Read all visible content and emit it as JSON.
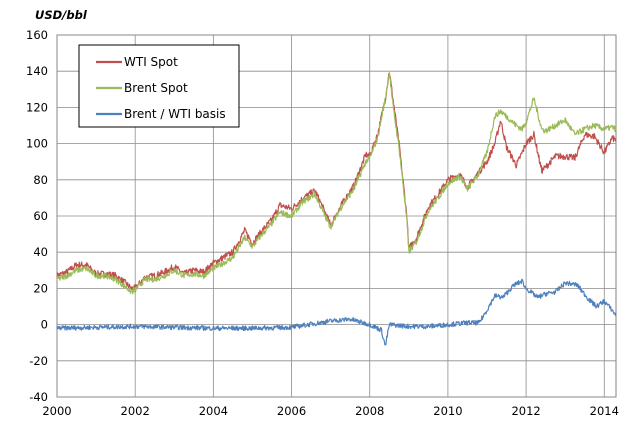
{
  "chart_data": {
    "type": "line",
    "title": "",
    "xlabel": "",
    "ylabel": "USD/bbl",
    "xlim": [
      2000,
      2014.3
    ],
    "ylim": [
      -40,
      160
    ],
    "x_ticks": [
      2000,
      2002,
      2004,
      2006,
      2008,
      2010,
      2012,
      2014
    ],
    "y_ticks": [
      -40,
      -20,
      0,
      20,
      40,
      60,
      80,
      100,
      120,
      140,
      160
    ],
    "grid": true,
    "legend_position": "top-left",
    "series": [
      {
        "name": "WTI Spot",
        "color": "#c0504d",
        "x": [
          2000,
          2000.25,
          2000.5,
          2000.75,
          2001,
          2001.25,
          2001.5,
          2001.75,
          2001.9,
          2002,
          2002.25,
          2002.5,
          2002.75,
          2003,
          2003.25,
          2003.5,
          2003.75,
          2004,
          2004.25,
          2004.5,
          2004.8,
          2005,
          2005.25,
          2005.5,
          2005.7,
          2006,
          2006.3,
          2006.6,
          2006.9,
          2007,
          2007.3,
          2007.6,
          2007.9,
          2008,
          2008.2,
          2008.4,
          2008.5,
          2008.6,
          2008.75,
          2008.95,
          2009,
          2009.2,
          2009.5,
          2009.75,
          2010,
          2010.3,
          2010.5,
          2010.75,
          2011,
          2011.2,
          2011.35,
          2011.5,
          2011.75,
          2011.9,
          2012,
          2012.2,
          2012.4,
          2012.5,
          2012.75,
          2013,
          2013.25,
          2013.5,
          2013.75,
          2014,
          2014.2,
          2014.3
        ],
        "values": [
          27,
          29,
          33,
          33,
          28,
          28,
          27,
          23,
          20,
          20,
          26,
          27,
          29,
          32,
          28,
          30,
          29,
          34,
          37,
          40,
          52,
          45,
          52,
          58,
          66,
          64,
          70,
          74,
          60,
          55,
          67,
          77,
          94,
          93,
          105,
          125,
          140,
          124,
          100,
          60,
          42,
          48,
          65,
          72,
          80,
          83,
          76,
          83,
          90,
          100,
          113,
          98,
          88,
          95,
          100,
          105,
          85,
          87,
          93,
          93,
          92,
          105,
          104,
          95,
          103,
          102
        ]
      },
      {
        "name": "Brent Spot",
        "color": "#9bbb59",
        "x": [
          2000,
          2000.25,
          2000.5,
          2000.75,
          2001,
          2001.25,
          2001.5,
          2001.75,
          2001.9,
          2002,
          2002.25,
          2002.5,
          2002.75,
          2003,
          2003.25,
          2003.5,
          2003.75,
          2004,
          2004.25,
          2004.5,
          2004.8,
          2005,
          2005.25,
          2005.5,
          2005.7,
          2006,
          2006.3,
          2006.6,
          2006.9,
          2007,
          2007.3,
          2007.6,
          2007.9,
          2008,
          2008.2,
          2008.4,
          2008.5,
          2008.6,
          2008.75,
          2008.95,
          2009,
          2009.2,
          2009.5,
          2009.75,
          2010,
          2010.3,
          2010.5,
          2010.75,
          2011,
          2011.2,
          2011.35,
          2011.5,
          2011.75,
          2011.9,
          2012,
          2012.2,
          2012.4,
          2012.5,
          2012.75,
          2013,
          2013.25,
          2013.5,
          2013.75,
          2014,
          2014.2,
          2014.3
        ],
        "values": [
          25,
          27,
          30,
          31,
          27,
          27,
          25,
          21,
          18,
          19,
          25,
          25,
          27,
          30,
          27,
          28,
          27,
          31,
          34,
          37,
          48,
          43,
          50,
          56,
          62,
          60,
          68,
          72,
          58,
          54,
          66,
          75,
          90,
          92,
          103,
          125,
          140,
          120,
          98,
          58,
          40,
          46,
          63,
          70,
          78,
          82,
          75,
          82,
          95,
          115,
          118,
          115,
          110,
          108,
          112,
          125,
          108,
          107,
          110,
          113,
          105,
          108,
          110,
          108,
          109,
          108
        ]
      },
      {
        "name": "Brent / WTI basis",
        "color": "#4f81bd",
        "x": [
          2000,
          2001,
          2002,
          2003,
          2004,
          2005,
          2006,
          2007,
          2007.5,
          2008,
          2008.3,
          2008.4,
          2008.5,
          2009,
          2009.5,
          2010,
          2010.5,
          2010.8,
          2011,
          2011.2,
          2011.4,
          2011.7,
          2011.9,
          2012,
          2012.3,
          2012.5,
          2012.75,
          2013,
          2013.3,
          2013.6,
          2013.8,
          2014,
          2014.2,
          2014.3
        ],
        "values": [
          -2,
          -1.5,
          -1,
          -1.5,
          -2,
          -2,
          -1.5,
          2,
          3,
          0,
          -3,
          -12,
          0,
          -1,
          -1,
          0,
          1,
          1,
          8,
          16,
          15,
          22,
          24,
          20,
          15,
          17,
          18,
          23,
          22,
          14,
          10,
          13,
          8,
          5
        ]
      }
    ]
  }
}
